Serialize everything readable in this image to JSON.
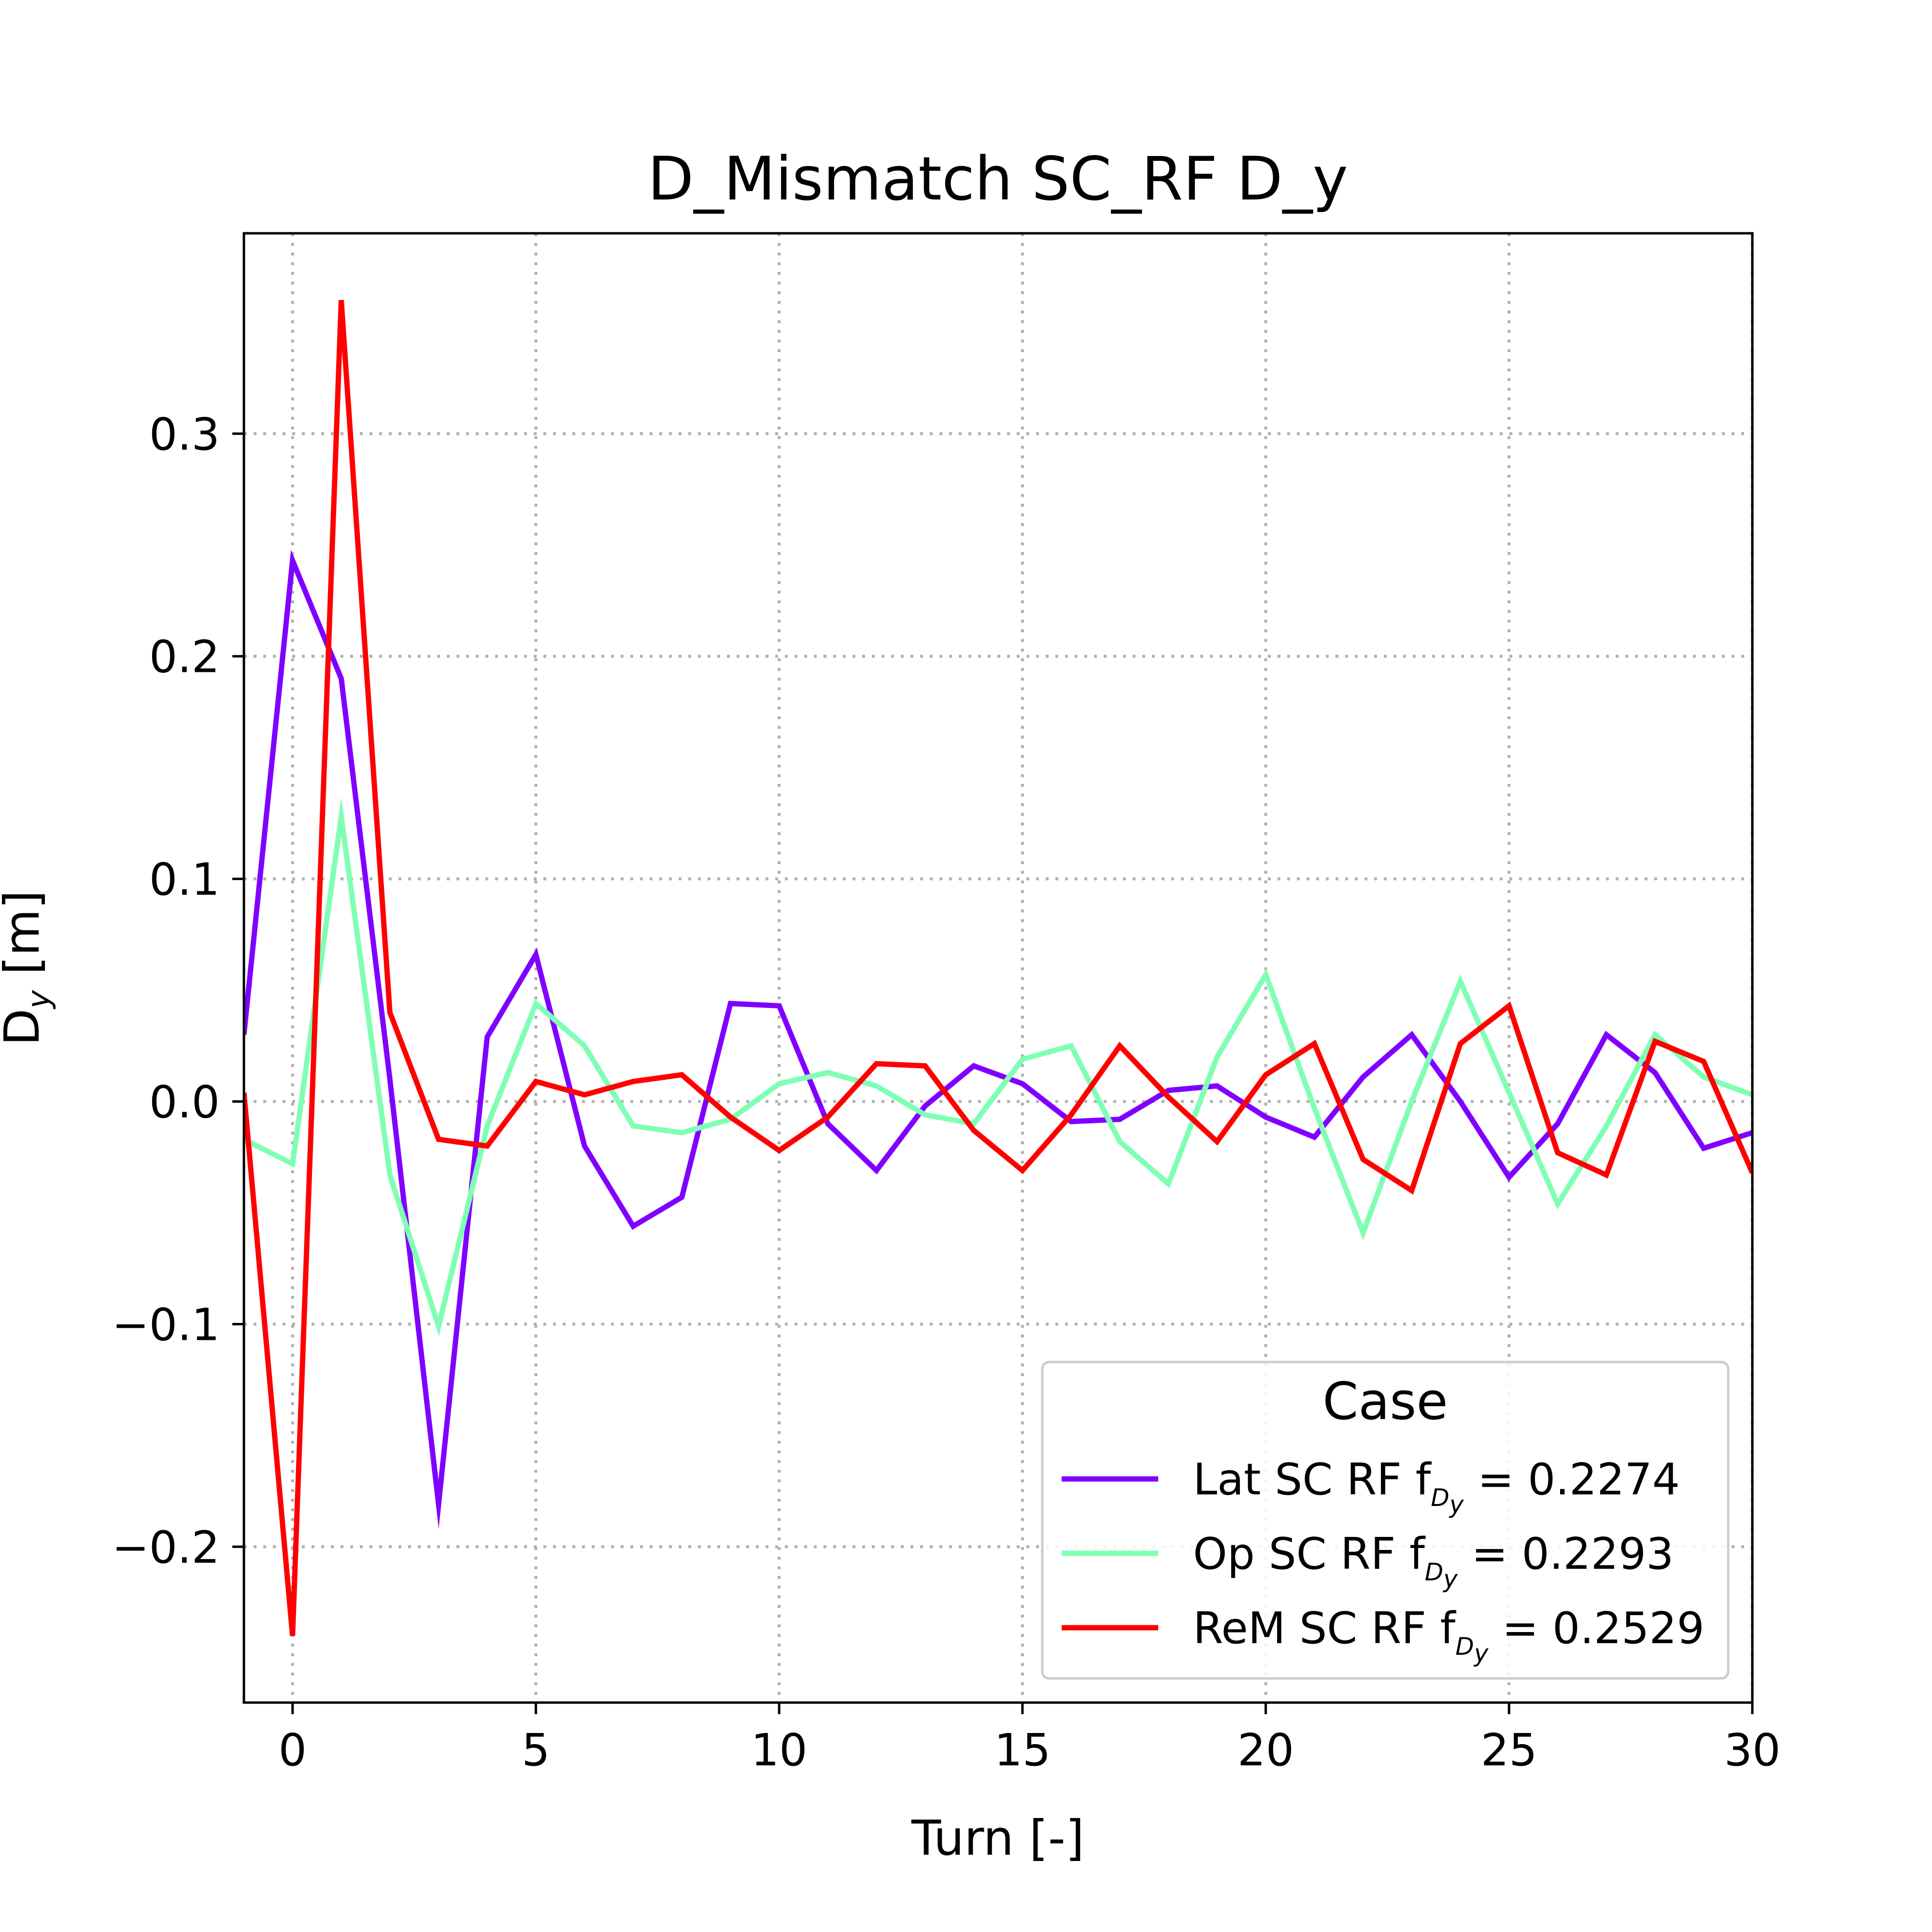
{
  "chart_data": {
    "type": "line",
    "title": "D_Mismatch SC_RF D_y",
    "xlabel": "Turn [-]",
    "ylabel_main": "D",
    "ylabel_sub": "y",
    "ylabel_unit": " [m]",
    "xlim": [
      -1,
      30
    ],
    "ylim": [
      -0.27,
      0.39
    ],
    "x_ticks": [
      0,
      5,
      10,
      15,
      20,
      25,
      30
    ],
    "y_ticks": [
      -0.2,
      -0.1,
      0.0,
      0.1,
      0.2,
      0.3
    ],
    "x_tick_labels": [
      "0",
      "5",
      "10",
      "15",
      "20",
      "25",
      "30"
    ],
    "y_tick_labels": [
      "−0.2",
      "−0.1",
      "0.0",
      "0.1",
      "0.2",
      "0.3"
    ],
    "grid": true,
    "legend": {
      "title": "Case",
      "placement": "lower-right",
      "formula_prefix": "f",
      "formula_sub": "D",
      "formula_subsub": "y",
      "formula_eq": " = "
    },
    "x": [
      -1,
      0,
      1,
      2,
      3,
      4,
      5,
      6,
      7,
      8,
      9,
      10,
      11,
      12,
      13,
      14,
      15,
      16,
      17,
      18,
      19,
      20,
      21,
      22,
      23,
      24,
      25,
      26,
      27,
      28,
      29,
      30
    ],
    "series": [
      {
        "name": "Lat SC RF",
        "freq": "0.2274",
        "color": "#8000ff",
        "values": [
          0.03,
          0.243,
          0.19,
          0.01,
          -0.181,
          0.029,
          0.066,
          -0.02,
          -0.056,
          -0.043,
          0.044,
          0.043,
          -0.01,
          -0.031,
          -0.002,
          0.016,
          0.008,
          -0.009,
          -0.008,
          0.005,
          0.007,
          -0.007,
          -0.016,
          0.011,
          0.03,
          0.0,
          -0.034,
          -0.01,
          0.03,
          0.013,
          -0.021,
          -0.014
        ]
      },
      {
        "name": "Op SC RF",
        "freq": "0.2293",
        "color": "#80ffb4",
        "values": [
          -0.017,
          -0.028,
          0.128,
          -0.033,
          -0.101,
          -0.011,
          0.044,
          0.025,
          -0.011,
          -0.014,
          -0.008,
          0.008,
          0.013,
          0.007,
          -0.006,
          -0.01,
          0.019,
          0.025,
          -0.018,
          -0.037,
          0.02,
          0.057,
          -0.003,
          -0.059,
          0.0,
          0.054,
          0.004,
          -0.046,
          -0.011,
          0.03,
          0.011,
          0.003
        ]
      },
      {
        "name": "ReM SC RF",
        "freq": "0.2529",
        "color": "#ff0000",
        "values": [
          0.004,
          -0.24,
          0.36,
          0.04,
          -0.017,
          -0.02,
          0.009,
          0.003,
          0.009,
          0.012,
          -0.007,
          -0.022,
          -0.007,
          0.017,
          0.016,
          -0.013,
          -0.031,
          -0.006,
          0.025,
          0.002,
          -0.018,
          0.012,
          0.026,
          -0.026,
          -0.04,
          0.026,
          0.043,
          -0.023,
          -0.033,
          0.027,
          0.018,
          -0.032
        ]
      }
    ]
  }
}
